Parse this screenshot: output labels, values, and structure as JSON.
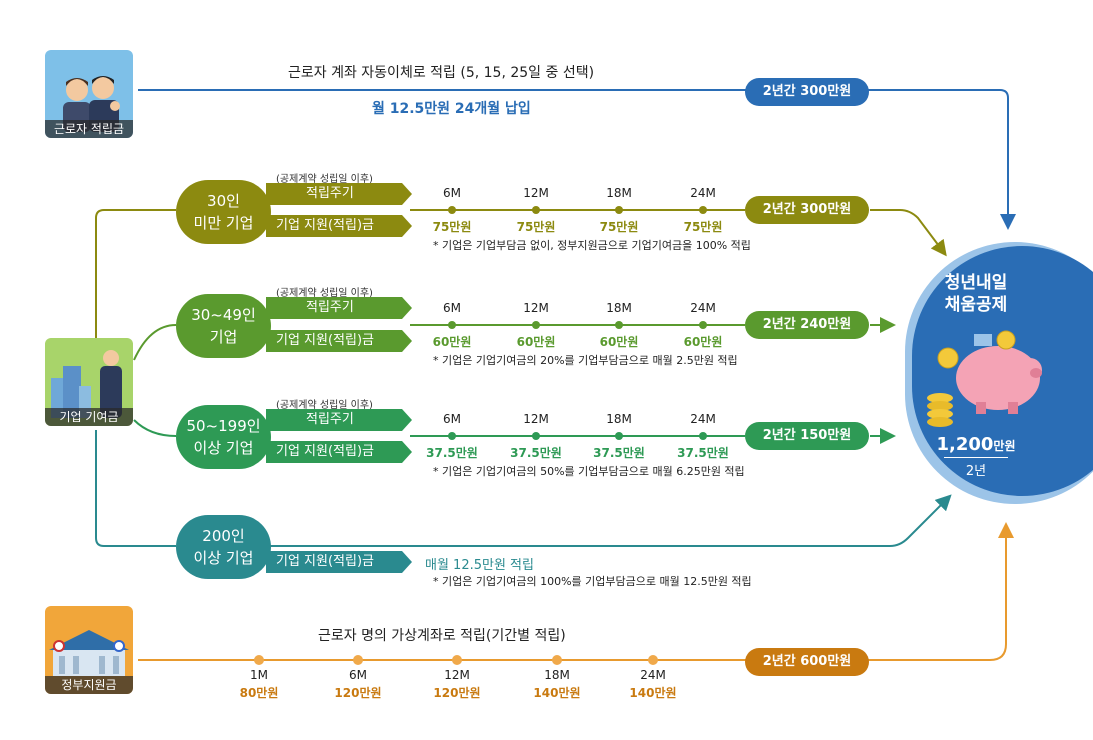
{
  "worker": {
    "tile_label": "근로자 적립금",
    "title": "근로자 계좌 자동이체로 적립 (5, 15, 25일 중 선택)",
    "subtitle": "월 12.5만원 24개월 납입",
    "total": "2년간 300만원"
  },
  "company_tile_label": "기업 기여금",
  "gov_tile_label": "정부지원금",
  "periods": [
    "6M",
    "12M",
    "18M",
    "24M"
  ],
  "tiers": [
    {
      "name_line1": "30인",
      "name_line2": "미만 기업",
      "small": "(공제계약 성립일 이후)",
      "period_label": "적립주기",
      "support_label": "기업 지원(적립)금",
      "amounts": [
        "75만원",
        "75만원",
        "75만원",
        "75만원"
      ],
      "note": "* 기업은 기업부담금 없이, 정부지원금으로 기업기여금을 100% 적립",
      "total": "2년간 300만원",
      "color": "#8c8a10"
    },
    {
      "name_line1": "30~49인",
      "name_line2": "기업",
      "small": "(공제계약 성립일 이후)",
      "period_label": "적립주기",
      "support_label": "기업 지원(적립)금",
      "amounts": [
        "60만원",
        "60만원",
        "60만원",
        "60만원"
      ],
      "note": "* 기업은 기업기여금의 20%를 기업부담금으로 매월 2.5만원 적립",
      "total": "2년간 240만원",
      "color": "#5a9a2e"
    },
    {
      "name_line1": "50~199인",
      "name_line2": "이상 기업",
      "small": "(공제계약 성립일 이후)",
      "period_label": "적립주기",
      "support_label": "기업 지원(적립)금",
      "amounts": [
        "37.5만원",
        "37.5만원",
        "37.5만원",
        "37.5만원"
      ],
      "note": "* 기업은 기업기여금의 50%를 기업부담금으로 매월 6.25만원 적립",
      "total": "2년간 150만원",
      "color": "#2e9a55"
    },
    {
      "name_line1": "200인",
      "name_line2": "이상 기업",
      "support_label": "기업 지원(적립)금",
      "monthly": "매월 12.5만원 적립",
      "note": "* 기업은 기업기여금의 100%를 기업부담금으로 매월 12.5만원 적립",
      "color": "#2a8a8f"
    }
  ],
  "gov": {
    "title": "근로자 명의 가상계좌로 적립(기간별 적립)",
    "points": [
      {
        "period": "1M",
        "amount": "80만원"
      },
      {
        "period": "6M",
        "amount": "120만원"
      },
      {
        "period": "12M",
        "amount": "120만원"
      },
      {
        "period": "18M",
        "amount": "140만원"
      },
      {
        "period": "24M",
        "amount": "140만원"
      }
    ],
    "total": "2년간 600만원"
  },
  "result": {
    "title_line1": "청년내일",
    "title_line2": "채움공제",
    "amount": "1,200",
    "amount_unit": "만원",
    "period": "2년"
  },
  "colors": {
    "worker": "#2a6db5",
    "gov": "#e89a2e",
    "result": "#2a6db5"
  }
}
